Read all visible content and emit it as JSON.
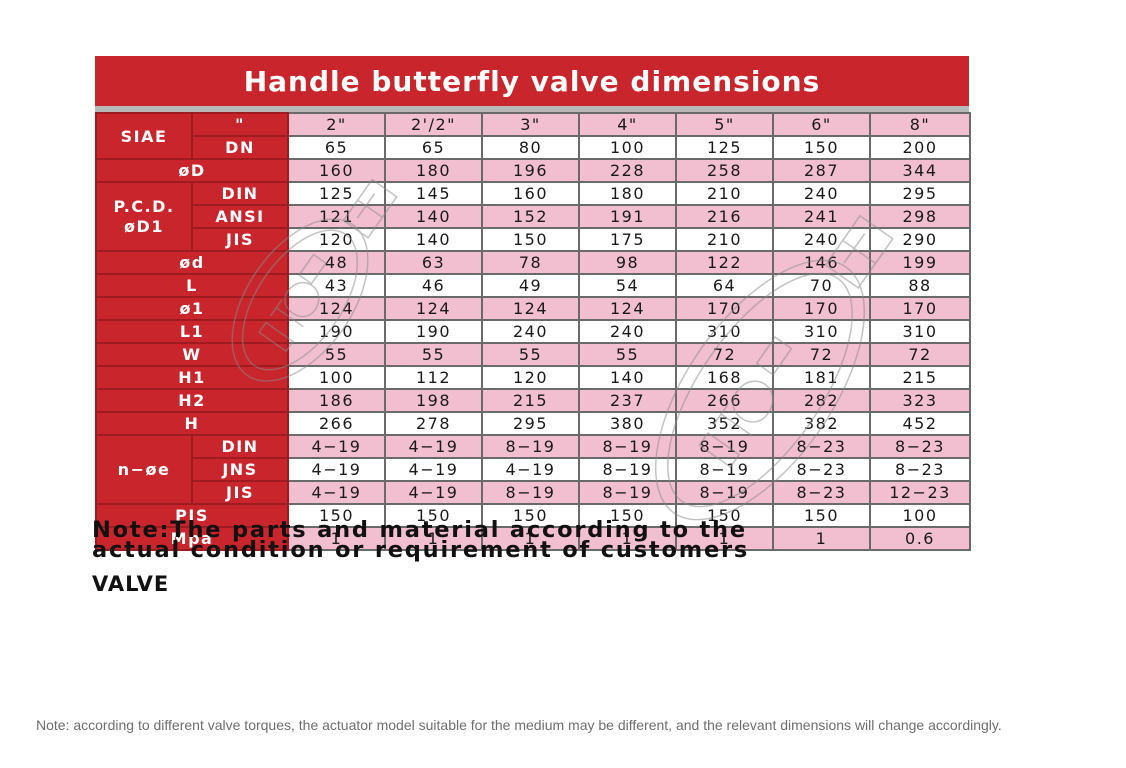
{
  "title": "Handle butterfly valve dimensions",
  "size_row": {
    "label_main": "SIAE",
    "label_sub": "\"",
    "values": [
      "2\"",
      "2'/2\"",
      "3\"",
      "4\"",
      "5\"",
      "6\"",
      "8\""
    ]
  },
  "dn_row": {
    "label": "DN",
    "values": [
      "65",
      "65",
      "80",
      "100",
      "125",
      "150",
      "200"
    ]
  },
  "od_row": {
    "label": "øD",
    "values": [
      "160",
      "180",
      "196",
      "228",
      "258",
      "287",
      "344"
    ]
  },
  "pcd": {
    "label_line1": "P.C.D.",
    "label_line2": "øD1",
    "rows": [
      {
        "label": "DIN",
        "values": [
          "125",
          "145",
          "160",
          "180",
          "210",
          "240",
          "295"
        ]
      },
      {
        "label": "ANSI",
        "values": [
          "121",
          "140",
          "152",
          "191",
          "216",
          "241",
          "298"
        ]
      },
      {
        "label": "JIS",
        "values": [
          "120",
          "140",
          "150",
          "175",
          "210",
          "240",
          "290"
        ]
      }
    ]
  },
  "mid_rows": [
    {
      "label": "ød",
      "values": [
        "48",
        "63",
        "78",
        "98",
        "122",
        "146",
        "199"
      ]
    },
    {
      "label": "L",
      "values": [
        "43",
        "46",
        "49",
        "54",
        "64",
        "70",
        "88"
      ]
    },
    {
      "label": "ø1",
      "values": [
        "124",
        "124",
        "124",
        "124",
        "170",
        "170",
        "170"
      ]
    },
    {
      "label": "L1",
      "values": [
        "190",
        "190",
        "240",
        "240",
        "310",
        "310",
        "310"
      ]
    },
    {
      "label": "W",
      "values": [
        "55",
        "55",
        "55",
        "55",
        "72",
        "72",
        "72"
      ]
    },
    {
      "label": "H1",
      "values": [
        "100",
        "112",
        "120",
        "140",
        "168",
        "181",
        "215"
      ]
    },
    {
      "label": "H2",
      "values": [
        "186",
        "198",
        "215",
        "237",
        "266",
        "282",
        "323"
      ]
    },
    {
      "label": "H",
      "values": [
        "266",
        "278",
        "295",
        "380",
        "352",
        "382",
        "452"
      ]
    }
  ],
  "bolts": {
    "label": "n−øe",
    "rows": [
      {
        "label": "DIN",
        "values": [
          "4−19",
          "4−19",
          "8−19",
          "8−19",
          "8−19",
          "8−23",
          "8−23"
        ]
      },
      {
        "label": "JNS",
        "values": [
          "4−19",
          "4−19",
          "4−19",
          "8−19",
          "8−19",
          "8−23",
          "8−23"
        ]
      },
      {
        "label": "JIS",
        "values": [
          "4−19",
          "4−19",
          "8−19",
          "8−19",
          "8−19",
          "8−23",
          "12−23"
        ]
      }
    ]
  },
  "bottom_rows": [
    {
      "label": "PIS",
      "values": [
        "150",
        "150",
        "150",
        "150",
        "150",
        "150",
        "100"
      ]
    },
    {
      "label": "Mpa",
      "values": [
        "1",
        "1",
        "1",
        "1",
        "1",
        "1",
        "0.6"
      ]
    }
  ],
  "note": {
    "line1": "Note:The parts and material according to the",
    "line2": "actual condition or requirement of customers"
  },
  "valve_label": "VALVE",
  "footnote": "Note: according to different valve torques, the actuator model suitable for the medium may be different, and the relevant dimensions will change accordingly.",
  "colors": {
    "header_red": "#c8262c",
    "pink_row": "#f2bfd0",
    "white_row": "#ffffff"
  }
}
